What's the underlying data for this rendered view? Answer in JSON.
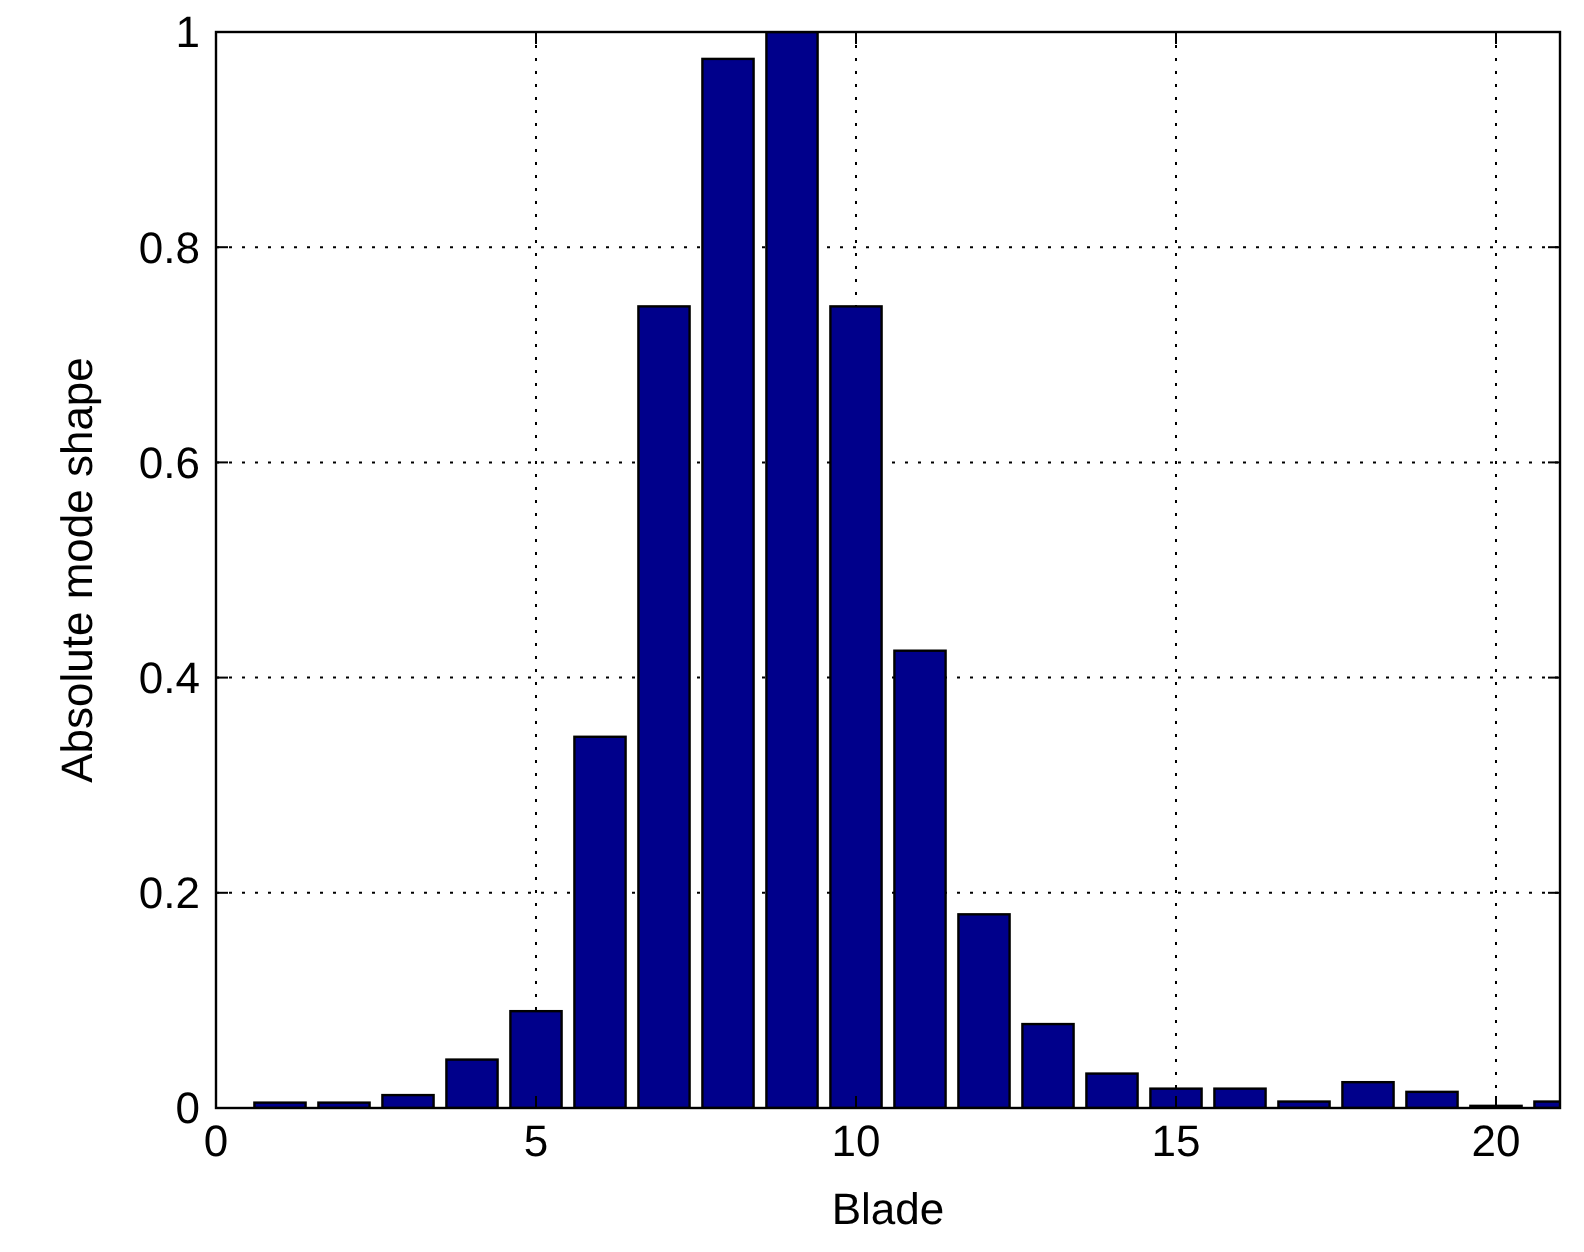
{
  "chart_data": {
    "type": "bar",
    "xlabel": "Blade",
    "ylabel": "Absolute mode shape",
    "x": [
      1,
      2,
      3,
      4,
      5,
      6,
      7,
      8,
      9,
      10,
      11,
      12,
      13,
      14,
      15,
      16,
      17,
      18,
      19,
      20,
      21
    ],
    "values": [
      0.005,
      0.005,
      0.012,
      0.045,
      0.09,
      0.345,
      0.745,
      0.975,
      1,
      0.745,
      0.425,
      0.18,
      0.078,
      0.032,
      0.018,
      0.018,
      0.006,
      0.024,
      0.015,
      0.002,
      0.006
    ],
    "color": "#00008b",
    "xlim": [
      0,
      21
    ],
    "xticks": [
      0,
      5,
      10,
      15,
      20
    ],
    "ylim": [
      0,
      1
    ],
    "yticks": [
      0,
      0.2,
      0.4,
      0.6,
      0.8,
      1
    ],
    "grid": true
  }
}
